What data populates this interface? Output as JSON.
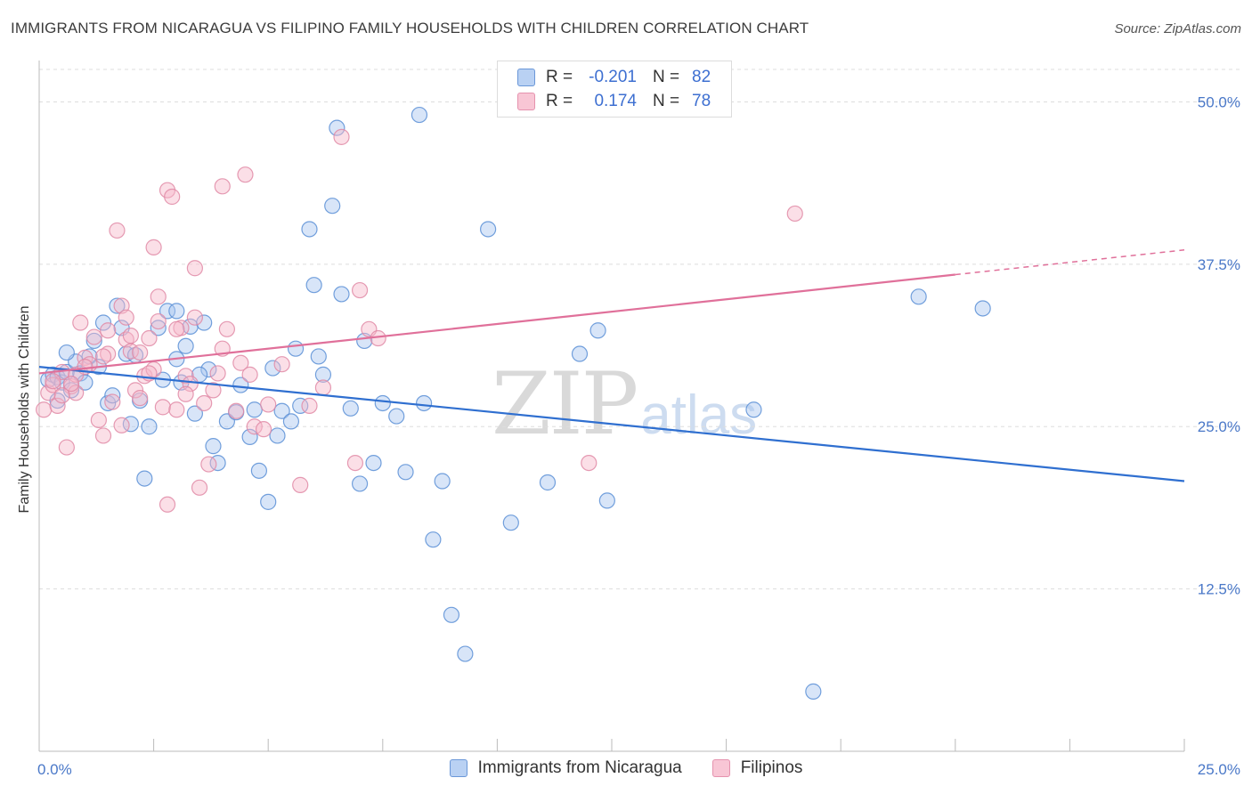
{
  "title": "IMMIGRANTS FROM NICARAGUA VS FILIPINO FAMILY HOUSEHOLDS WITH CHILDREN CORRELATION CHART",
  "source": "Source: ZipAtlas.com",
  "watermark": {
    "zip": "ZIP",
    "atlas": "atlas"
  },
  "colors": {
    "blue_fill": "#a9c6f0",
    "blue_stroke": "#5b8fd6",
    "blue_line": "#2f6fd0",
    "pink_fill": "#f6b8ca",
    "pink_stroke": "#e08aa6",
    "pink_line": "#e0709a",
    "axis_text": "#4a78c8",
    "grid": "#dddddd"
  },
  "legend": {
    "rows": [
      {
        "r_label": "R =",
        "r_value": "-0.201",
        "n_label": "N =",
        "n_value": "82"
      },
      {
        "r_label": "R =",
        "r_value": "0.174",
        "n_label": "N =",
        "n_value": "78"
      }
    ]
  },
  "bottom_legend": {
    "series1": "Immigrants from Nicaragua",
    "series2": "Filipinos"
  },
  "chart_data": {
    "type": "scatter",
    "title": "IMMIGRANTS FROM NICARAGUA VS FILIPINO FAMILY HOUSEHOLDS WITH CHILDREN CORRELATION CHART",
    "xlabel": "",
    "ylabel": "Family Households with Children",
    "xlim": [
      0,
      25
    ],
    "ylim": [
      0,
      52.5
    ],
    "x_tick_labels": [
      {
        "value": 0,
        "label": "0.0%"
      },
      {
        "value": 25,
        "label": "25.0%"
      }
    ],
    "y_tick_labels": [
      {
        "value": 12.5,
        "label": "12.5%"
      },
      {
        "value": 25.0,
        "label": "25.0%"
      },
      {
        "value": 37.5,
        "label": "37.5%"
      },
      {
        "value": 50.0,
        "label": "50.0%"
      }
    ],
    "x_minor_ticks": [
      2.5,
      5,
      7.5,
      10,
      12.5,
      15,
      17.5,
      20,
      22.5,
      25
    ],
    "grid": true,
    "series": [
      {
        "name": "Immigrants from Nicaragua",
        "color": "blue",
        "trend": {
          "x0": 0,
          "y0": 29.6,
          "x1": 25,
          "y1": 20.8
        },
        "points": [
          [
            0.2,
            28.6
          ],
          [
            0.3,
            29.0
          ],
          [
            0.4,
            28.8
          ],
          [
            0.5,
            28.4
          ],
          [
            0.6,
            29.2
          ],
          [
            0.7,
            27.8
          ],
          [
            0.8,
            30.0
          ],
          [
            0.9,
            29.1
          ],
          [
            1.1,
            30.4
          ],
          [
            1.2,
            31.6
          ],
          [
            1.3,
            29.6
          ],
          [
            1.5,
            26.8
          ],
          [
            1.6,
            27.4
          ],
          [
            1.7,
            34.3
          ],
          [
            1.8,
            32.6
          ],
          [
            1.9,
            30.6
          ],
          [
            2.1,
            30.5
          ],
          [
            2.2,
            27.0
          ],
          [
            2.4,
            25.0
          ],
          [
            2.6,
            32.6
          ],
          [
            2.7,
            28.6
          ],
          [
            2.8,
            33.9
          ],
          [
            3.0,
            30.2
          ],
          [
            3.1,
            28.4
          ],
          [
            3.2,
            31.2
          ],
          [
            3.3,
            32.7
          ],
          [
            3.4,
            26.0
          ],
          [
            3.6,
            33.0
          ],
          [
            3.7,
            29.4
          ],
          [
            3.8,
            23.5
          ],
          [
            3.9,
            22.2
          ],
          [
            4.1,
            25.4
          ],
          [
            4.3,
            26.1
          ],
          [
            4.4,
            28.2
          ],
          [
            4.6,
            24.2
          ],
          [
            4.7,
            26.3
          ],
          [
            4.8,
            21.6
          ],
          [
            5.0,
            19.2
          ],
          [
            5.1,
            29.5
          ],
          [
            5.2,
            24.3
          ],
          [
            5.3,
            26.2
          ],
          [
            5.5,
            25.4
          ],
          [
            5.6,
            31.0
          ],
          [
            5.7,
            26.6
          ],
          [
            5.9,
            40.2
          ],
          [
            6.0,
            35.9
          ],
          [
            6.2,
            29.0
          ],
          [
            6.4,
            42.0
          ],
          [
            6.5,
            48.0
          ],
          [
            6.6,
            35.2
          ],
          [
            6.8,
            26.4
          ],
          [
            7.0,
            20.6
          ],
          [
            7.1,
            31.6
          ],
          [
            7.3,
            22.2
          ],
          [
            7.8,
            25.8
          ],
          [
            8.0,
            21.5
          ],
          [
            8.4,
            26.8
          ],
          [
            8.6,
            16.3
          ],
          [
            8.8,
            20.8
          ],
          [
            9.0,
            10.5
          ],
          [
            9.3,
            7.5
          ],
          [
            9.8,
            40.2
          ],
          [
            10.3,
            17.6
          ],
          [
            11.1,
            20.7
          ],
          [
            11.8,
            30.6
          ],
          [
            12.2,
            32.4
          ],
          [
            12.4,
            19.3
          ],
          [
            15.6,
            26.3
          ],
          [
            16.9,
            4.6
          ],
          [
            19.2,
            35.0
          ],
          [
            20.6,
            34.1
          ],
          [
            8.3,
            49.0
          ],
          [
            2.3,
            21.0
          ],
          [
            3.5,
            29.0
          ],
          [
            1.0,
            28.4
          ],
          [
            0.6,
            30.7
          ],
          [
            1.4,
            33.0
          ],
          [
            6.1,
            30.4
          ],
          [
            7.5,
            26.8
          ],
          [
            0.4,
            27.0
          ],
          [
            2.0,
            25.2
          ],
          [
            3.0,
            33.9
          ]
        ]
      },
      {
        "name": "Filipinos",
        "color": "pink",
        "trend": {
          "x0": 0,
          "y0": 29.1,
          "x1": 25,
          "y1": 38.6,
          "solid_until": 20
        },
        "points": [
          [
            0.1,
            26.3
          ],
          [
            0.2,
            27.6
          ],
          [
            0.3,
            28.2
          ],
          [
            0.4,
            26.6
          ],
          [
            0.5,
            29.2
          ],
          [
            0.6,
            23.4
          ],
          [
            0.7,
            28.1
          ],
          [
            0.8,
            27.6
          ],
          [
            0.9,
            33.0
          ],
          [
            1.0,
            30.3
          ],
          [
            1.1,
            29.8
          ],
          [
            1.2,
            31.9
          ],
          [
            1.3,
            25.5
          ],
          [
            1.4,
            24.3
          ],
          [
            1.5,
            30.6
          ],
          [
            1.6,
            26.9
          ],
          [
            1.7,
            40.1
          ],
          [
            1.8,
            34.3
          ],
          [
            1.9,
            31.7
          ],
          [
            2.0,
            30.8
          ],
          [
            2.1,
            27.8
          ],
          [
            2.2,
            27.2
          ],
          [
            2.3,
            28.9
          ],
          [
            2.4,
            31.8
          ],
          [
            2.5,
            38.8
          ],
          [
            2.6,
            33.1
          ],
          [
            2.7,
            26.5
          ],
          [
            2.8,
            19.0
          ],
          [
            2.8,
            43.2
          ],
          [
            2.9,
            42.7
          ],
          [
            3.0,
            26.3
          ],
          [
            3.1,
            32.6
          ],
          [
            3.2,
            28.9
          ],
          [
            3.3,
            28.3
          ],
          [
            3.4,
            33.4
          ],
          [
            3.5,
            20.3
          ],
          [
            3.6,
            26.8
          ],
          [
            3.7,
            22.1
          ],
          [
            3.8,
            27.8
          ],
          [
            3.9,
            29.1
          ],
          [
            4.0,
            43.5
          ],
          [
            4.1,
            32.5
          ],
          [
            4.3,
            26.2
          ],
          [
            4.4,
            29.9
          ],
          [
            4.5,
            44.4
          ],
          [
            4.6,
            29.0
          ],
          [
            4.7,
            25.0
          ],
          [
            5.0,
            26.7
          ],
          [
            5.3,
            29.8
          ],
          [
            5.7,
            20.5
          ],
          [
            5.9,
            26.6
          ],
          [
            6.2,
            28.0
          ],
          [
            6.6,
            47.3
          ],
          [
            6.9,
            22.2
          ],
          [
            7.0,
            35.5
          ],
          [
            7.2,
            32.5
          ],
          [
            7.4,
            31.8
          ],
          [
            12.0,
            22.2
          ],
          [
            16.5,
            41.4
          ],
          [
            2.5,
            29.4
          ],
          [
            1.4,
            30.4
          ],
          [
            0.3,
            28.5
          ],
          [
            0.8,
            29.0
          ],
          [
            2.0,
            32.0
          ],
          [
            3.2,
            27.5
          ],
          [
            1.8,
            25.1
          ],
          [
            4.9,
            24.8
          ],
          [
            3.4,
            37.2
          ],
          [
            0.5,
            27.4
          ],
          [
            2.2,
            30.7
          ],
          [
            1.0,
            29.6
          ],
          [
            2.6,
            35.0
          ],
          [
            1.5,
            32.4
          ],
          [
            3.0,
            32.5
          ],
          [
            4.0,
            31.0
          ],
          [
            2.4,
            29.1
          ],
          [
            0.7,
            28.3
          ],
          [
            1.9,
            33.4
          ]
        ]
      }
    ]
  }
}
